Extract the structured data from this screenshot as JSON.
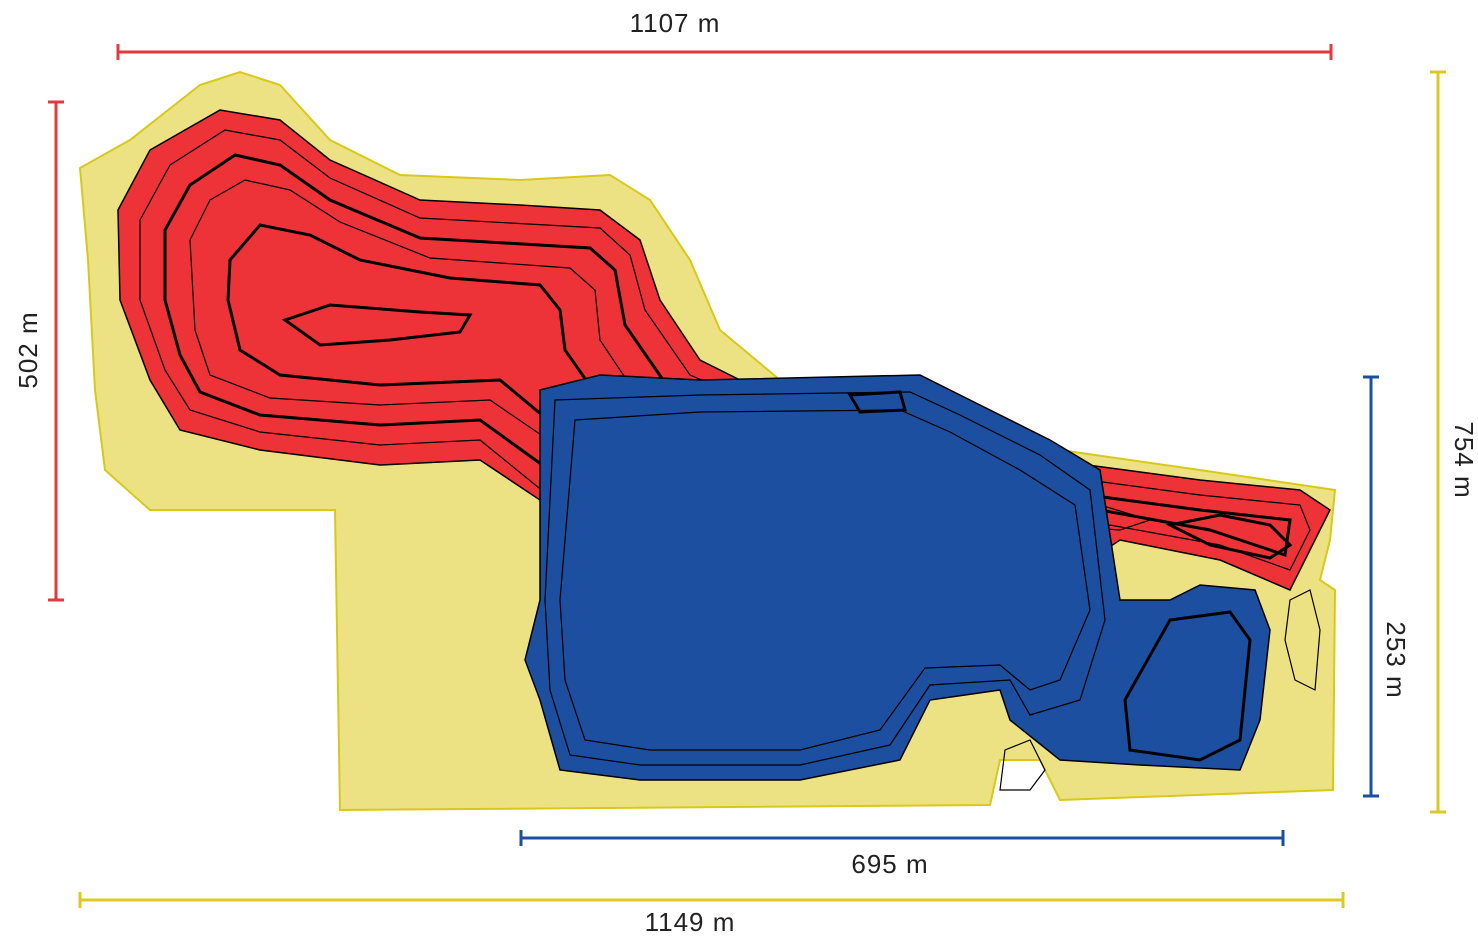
{
  "dimensions": {
    "red_width": "1107 m",
    "red_height": "502 m",
    "site_height": "754 m",
    "blue_height": "253 m",
    "blue_width": "695 m",
    "site_width": "1149 m"
  }
}
